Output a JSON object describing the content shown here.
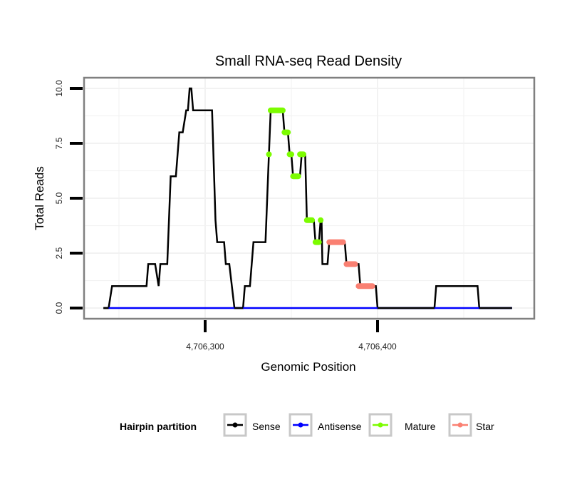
{
  "chart_data": {
    "type": "line",
    "title": "Small RNA-seq Read Density",
    "xlabel": "Genomic Position",
    "ylabel": "Total Reads",
    "xlim": [
      4706212,
      4706460
    ],
    "ylim": [
      -0.5,
      10.5
    ],
    "x_ticks": [
      {
        "value": 4706300,
        "label": "4,706,300"
      },
      {
        "value": 4706400,
        "label": "4,706,400"
      }
    ],
    "y_ticks": [
      {
        "value": 0,
        "label": "0.0"
      },
      {
        "value": 2.5,
        "label": "2.5"
      },
      {
        "value": 5,
        "label": "5.0"
      },
      {
        "value": 7.5,
        "label": "7.5"
      },
      {
        "value": 10,
        "label": "10.0"
      }
    ],
    "grid": true,
    "legend": {
      "title": "Hairpin partition",
      "position": "bottom",
      "entries": [
        {
          "name": "Sense",
          "color": "#000000"
        },
        {
          "name": "Antisense",
          "color": "#0000ff"
        },
        {
          "name": "Mature",
          "color": "#7cfc00"
        },
        {
          "name": "Star",
          "color": "#fa8072"
        }
      ]
    },
    "series": [
      {
        "name": "Sense",
        "color": "#000000",
        "points": [
          [
            4706241,
            0
          ],
          [
            4706244,
            0
          ],
          [
            4706246,
            1
          ],
          [
            4706266,
            1
          ],
          [
            4706267,
            2
          ],
          [
            4706271,
            2
          ],
          [
            4706273,
            1
          ],
          [
            4706274,
            2
          ],
          [
            4706278,
            2
          ],
          [
            4706280,
            6
          ],
          [
            4706283,
            6
          ],
          [
            4706285,
            8
          ],
          [
            4706287,
            8
          ],
          [
            4706289,
            9
          ],
          [
            4706290,
            9
          ],
          [
            4706291,
            10
          ],
          [
            4706292,
            10
          ],
          [
            4706293,
            9
          ],
          [
            4706304,
            9
          ],
          [
            4706306,
            4
          ],
          [
            4706307,
            3
          ],
          [
            4706311,
            3
          ],
          [
            4706312,
            2
          ],
          [
            4706314,
            2
          ],
          [
            4706317,
            0
          ],
          [
            4706322,
            0
          ],
          [
            4706323,
            1
          ],
          [
            4706326,
            1
          ],
          [
            4706328,
            3
          ],
          [
            4706335,
            3
          ],
          [
            4706337,
            7
          ],
          [
            4706338,
            9
          ],
          [
            4706345,
            9
          ],
          [
            4706346,
            8
          ],
          [
            4706348,
            8
          ],
          [
            4706349,
            7
          ],
          [
            4706350,
            7
          ],
          [
            4706351,
            6
          ],
          [
            4706355,
            6
          ],
          [
            4706356,
            7
          ],
          [
            4706358,
            7
          ],
          [
            4706359,
            4
          ],
          [
            4706363,
            4
          ],
          [
            4706364,
            3
          ],
          [
            4706366,
            3
          ],
          [
            4706367,
            4
          ],
          [
            4706367.5,
            4
          ],
          [
            4706368,
            2
          ],
          [
            4706371,
            2
          ],
          [
            4706372,
            3
          ],
          [
            4706381,
            3
          ],
          [
            4706382,
            2
          ],
          [
            4706389,
            2
          ],
          [
            4706390,
            1
          ],
          [
            4706399,
            1
          ],
          [
            4706400,
            0
          ],
          [
            4706433,
            0
          ],
          [
            4706434,
            1
          ],
          [
            4706458,
            1
          ],
          [
            4706459,
            0
          ],
          [
            4706478,
            0
          ]
        ]
      },
      {
        "name": "Antisense",
        "color": "#0000ff",
        "points": [
          [
            4706244,
            0
          ],
          [
            4706478,
            0
          ]
        ]
      },
      {
        "name": "Mature",
        "color": "#7cfc00",
        "segments": [
          [
            [
              4706337,
              7
            ],
            [
              4706337,
              7
            ]
          ],
          [
            [
              4706338,
              9
            ],
            [
              4706345,
              9
            ]
          ],
          [
            [
              4706346,
              8
            ],
            [
              4706348,
              8
            ]
          ],
          [
            [
              4706349,
              7
            ],
            [
              4706350,
              7
            ]
          ],
          [
            [
              4706351,
              6
            ],
            [
              4706354,
              6
            ]
          ],
          [
            [
              4706355,
              7
            ],
            [
              4706357,
              7
            ]
          ],
          [
            [
              4706359,
              4
            ],
            [
              4706362,
              4
            ]
          ],
          [
            [
              4706364,
              3
            ],
            [
              4706366,
              3
            ]
          ],
          [
            [
              4706367,
              4
            ],
            [
              4706367,
              4
            ]
          ]
        ]
      },
      {
        "name": "Star",
        "color": "#fa8072",
        "segments": [
          [
            [
              4706372,
              3
            ],
            [
              4706380,
              3
            ]
          ],
          [
            [
              4706382,
              2
            ],
            [
              4706387,
              2
            ]
          ],
          [
            [
              4706389,
              1
            ],
            [
              4706397,
              1
            ]
          ]
        ]
      }
    ]
  }
}
